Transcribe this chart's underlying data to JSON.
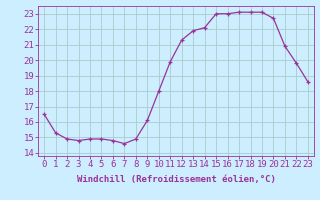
{
  "x": [
    0,
    1,
    2,
    3,
    4,
    5,
    6,
    7,
    8,
    9,
    10,
    11,
    12,
    13,
    14,
    15,
    16,
    17,
    18,
    19,
    20,
    21,
    22,
    23
  ],
  "y": [
    16.5,
    15.3,
    14.9,
    14.8,
    14.9,
    14.9,
    14.8,
    14.6,
    14.9,
    16.1,
    18.0,
    19.9,
    21.3,
    21.9,
    22.1,
    23.0,
    23.0,
    23.1,
    23.1,
    23.1,
    22.7,
    20.9,
    19.8,
    18.6
  ],
  "line_color": "#993399",
  "marker": "+",
  "bg_color": "#cceeff",
  "grid_color": "#aacccc",
  "tick_color": "#993399",
  "xlabel": "Windchill (Refroidissement éolien,°C)",
  "xlabel_fontsize": 6.5,
  "xtick_labels": [
    "0",
    "1",
    "2",
    "3",
    "4",
    "5",
    "6",
    "7",
    "8",
    "9",
    "10",
    "11",
    "12",
    "13",
    "14",
    "15",
    "16",
    "17",
    "18",
    "19",
    "20",
    "21",
    "22",
    "23"
  ],
  "ylim": [
    13.8,
    23.5
  ],
  "yticks": [
    14,
    15,
    16,
    17,
    18,
    19,
    20,
    21,
    22,
    23
  ],
  "ytick_labels": [
    "14",
    "15",
    "16",
    "17",
    "18",
    "19",
    "20",
    "21",
    "22",
    "23"
  ],
  "tick_fontsize": 6.5
}
